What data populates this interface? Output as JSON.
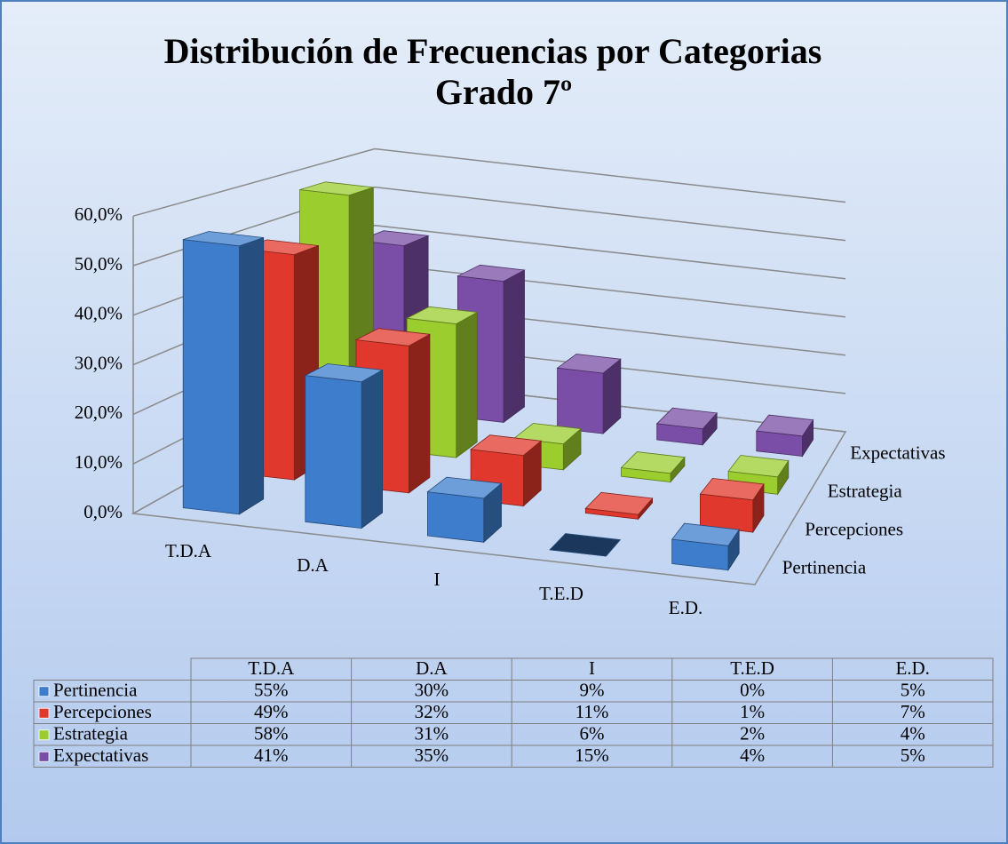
{
  "chart_data": {
    "type": "bar3d",
    "title": "Distribución de Frecuencias por Categorias",
    "subtitle": "Grado 7º",
    "categories": [
      "T.D.A",
      "D.A",
      "I",
      "T.E.D",
      "E.D."
    ],
    "series": [
      {
        "name": "Pertinencia",
        "color": "#3d7dcc",
        "values": [
          55,
          30,
          9,
          0,
          5
        ],
        "value_labels": [
          "55%",
          "30%",
          "9%",
          "0%",
          "5%"
        ]
      },
      {
        "name": "Percepciones",
        "color": "#e0382c",
        "values": [
          49,
          32,
          11,
          1,
          7
        ],
        "value_labels": [
          "49%",
          "32%",
          "11%",
          "1%",
          "7%"
        ]
      },
      {
        "name": "Estrategia",
        "color": "#9ccd2f",
        "values": [
          58,
          31,
          6,
          2,
          4
        ],
        "value_labels": [
          "58%",
          "31%",
          "6%",
          "2%",
          "4%"
        ]
      },
      {
        "name": "Expectativas",
        "color": "#7a4ea6",
        "values": [
          41,
          35,
          15,
          4,
          5
        ],
        "value_labels": [
          "41%",
          "35%",
          "15%",
          "4%",
          "5%"
        ]
      }
    ],
    "ylim": [
      0,
      60
    ],
    "yticks": [
      {
        "value": 0,
        "label": "0,0%"
      },
      {
        "value": 10,
        "label": "10,0%"
      },
      {
        "value": 20,
        "label": "20,0%"
      },
      {
        "value": 30,
        "label": "30,0%"
      },
      {
        "value": 40,
        "label": "40,0%"
      },
      {
        "value": 50,
        "label": "50,0%"
      },
      {
        "value": 60,
        "label": "60,0%"
      }
    ],
    "grid": true
  }
}
